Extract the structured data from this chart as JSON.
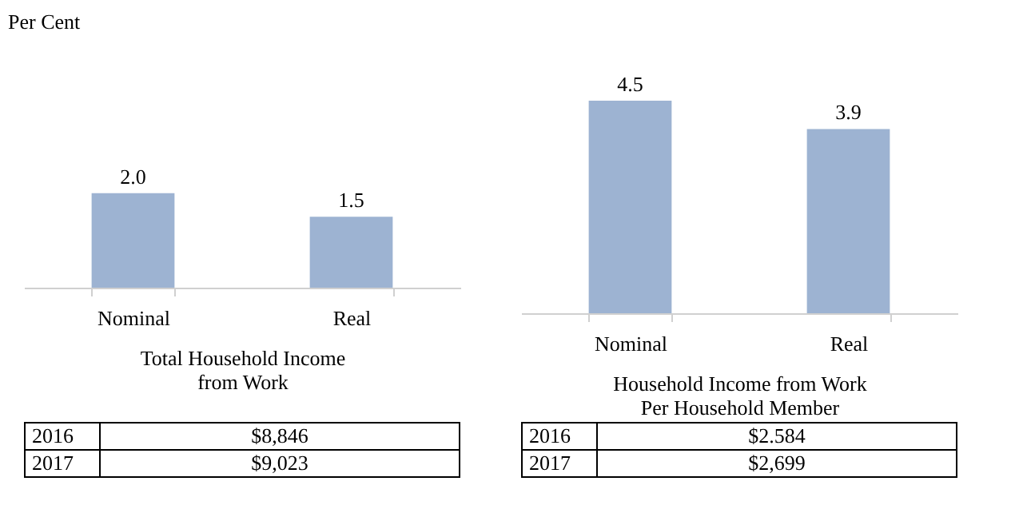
{
  "chart_data": [
    {
      "type": "bar",
      "ylabel": "Per Cent",
      "xlabel": "Total Household Income from Work",
      "categories": [
        "Nominal",
        "Real"
      ],
      "values": [
        2.0,
        1.5
      ],
      "color": "#9db3d2",
      "value_labels": [
        "2.0",
        "1.5"
      ],
      "annotations": [
        "2016",
        "$8,846",
        "2017",
        "$9,023"
      ]
    },
    {
      "type": "bar",
      "xlabel": "Household Income from Work Per Household Member",
      "categories": [
        "Nominal",
        "Real"
      ],
      "values": [
        4.5,
        3.9
      ],
      "color": "#9db3d2",
      "value_labels": [
        "4.5",
        "3.9"
      ],
      "annotations": [
        "2016",
        "$2.584",
        "2017",
        "$2,699"
      ]
    }
  ]
}
